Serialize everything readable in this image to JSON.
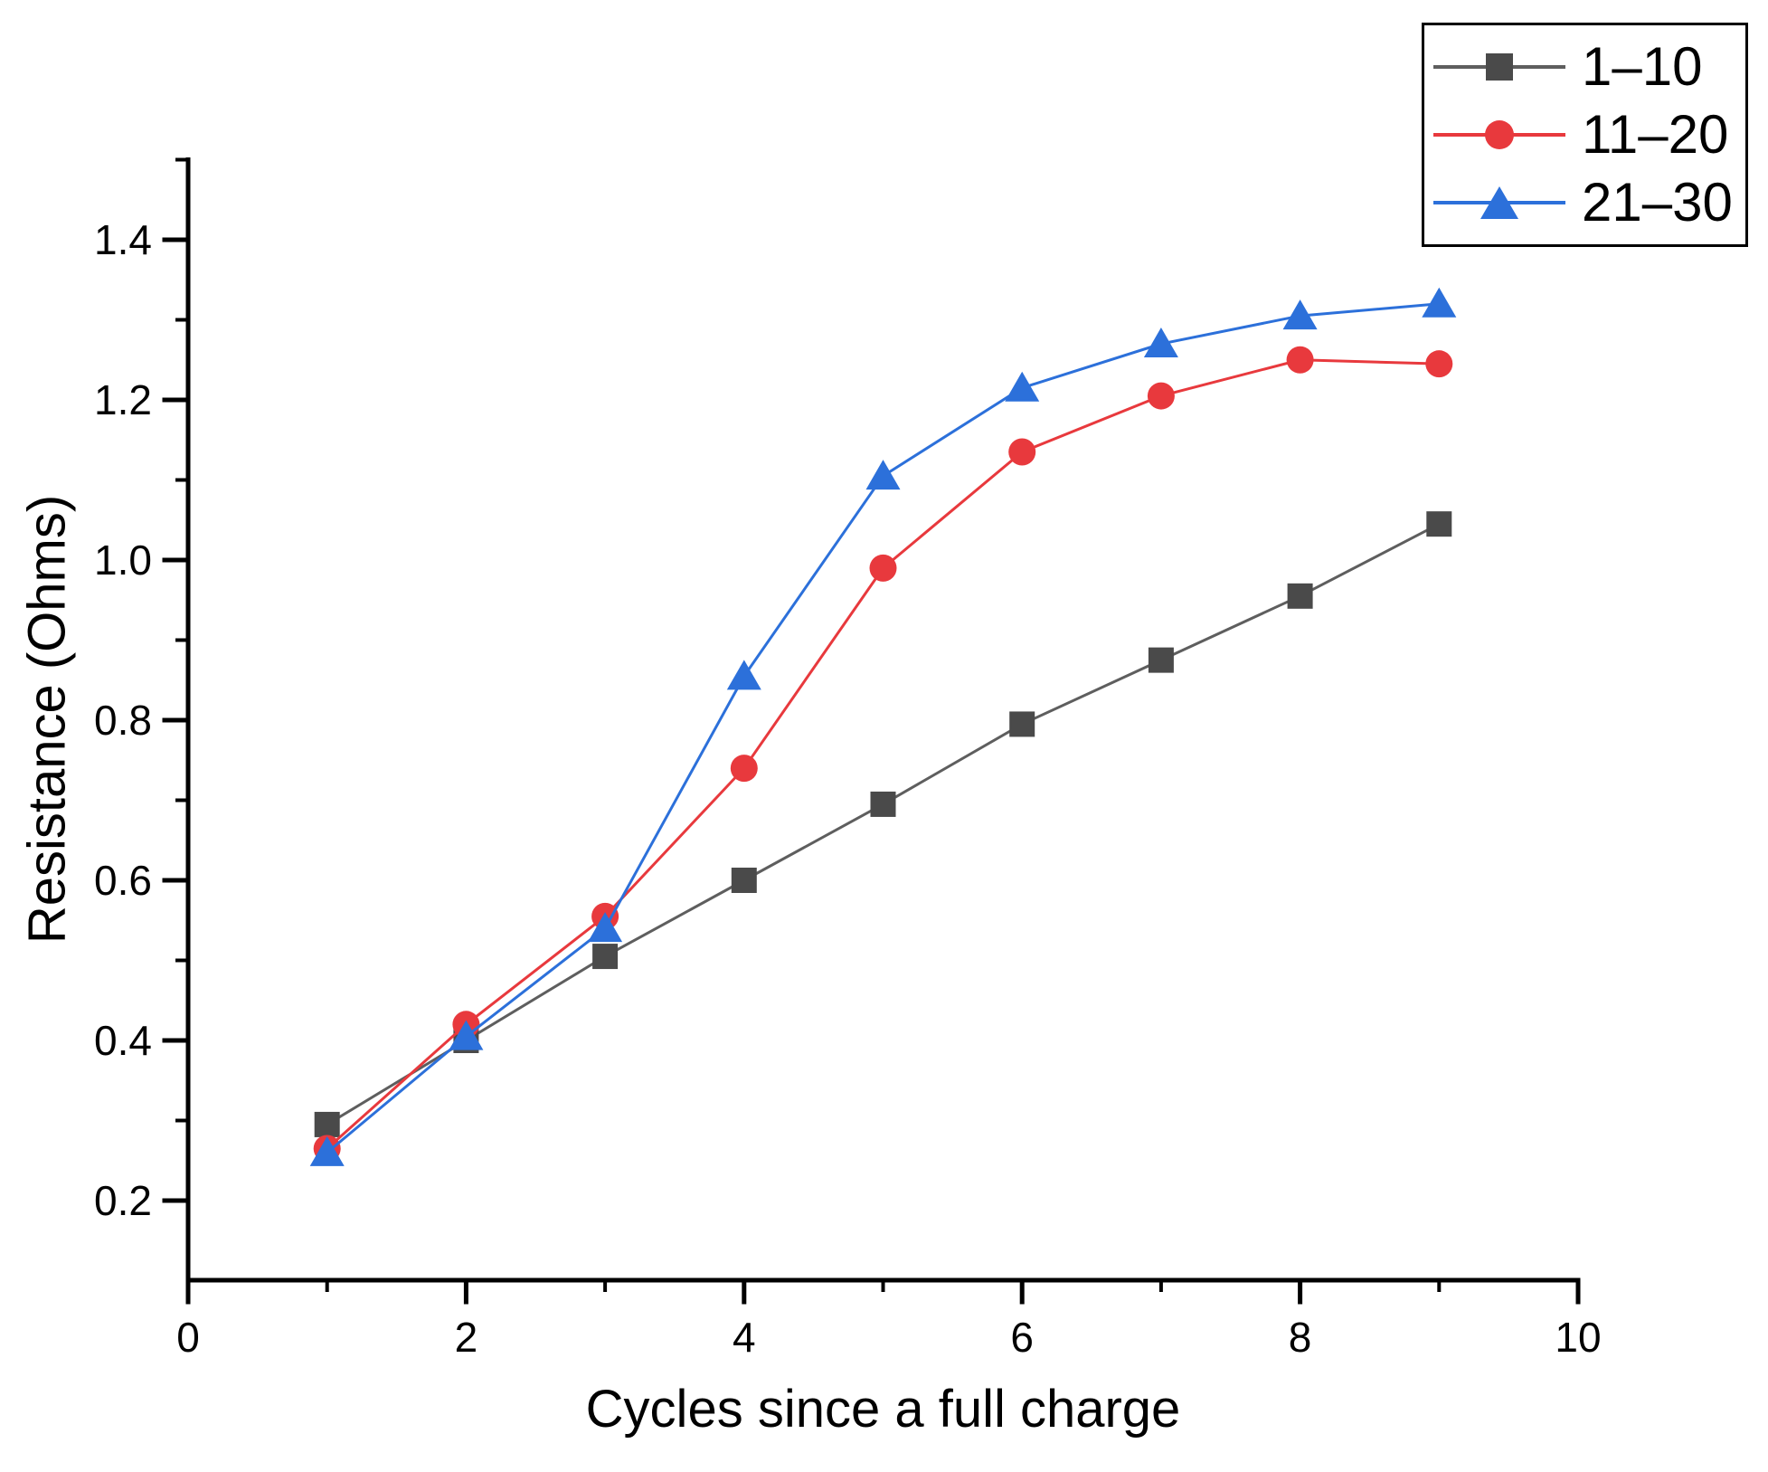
{
  "chart_data": {
    "type": "line",
    "title": "",
    "xlabel": "Cycles since a full charge",
    "ylabel": "Resistance (Ohms)",
    "x": [
      1,
      2,
      3,
      4,
      5,
      6,
      7,
      8,
      9
    ],
    "series": [
      {
        "name": "1–10",
        "marker": "square",
        "color": "#4A4A4A",
        "line_color": "#5E5E5E",
        "values": [
          0.295,
          0.4,
          0.505,
          0.6,
          0.695,
          0.795,
          0.875,
          0.955,
          1.045
        ]
      },
      {
        "name": "11–20",
        "marker": "circle",
        "color": "#E8393D",
        "line_color": "#E8393D",
        "values": [
          0.265,
          0.42,
          0.555,
          0.74,
          0.99,
          1.135,
          1.205,
          1.25,
          1.245
        ]
      },
      {
        "name": "21–30",
        "marker": "triangle",
        "color": "#2C70DA",
        "line_color": "#2C70DA",
        "values": [
          0.26,
          0.405,
          0.54,
          0.855,
          1.105,
          1.215,
          1.27,
          1.305,
          1.32
        ]
      }
    ],
    "xlim": [
      0,
      10
    ],
    "ylim": [
      0.1,
      1.5
    ],
    "x_major_ticks": [
      0,
      2,
      4,
      6,
      8,
      10
    ],
    "x_tick_labels": [
      "0",
      "2",
      "4",
      "6",
      "8",
      "10"
    ],
    "x_minor_ticks": [
      1,
      3,
      5,
      7,
      9
    ],
    "y_major_ticks": [
      0.2,
      0.4,
      0.6,
      0.8,
      1.0,
      1.2,
      1.4
    ],
    "y_tick_labels": [
      "0.2",
      "0.4",
      "0.6",
      "0.8",
      "1.0",
      "1.2",
      "1.4"
    ],
    "y_minor_ticks": [
      0.3,
      0.5,
      0.7,
      0.9,
      1.1,
      1.3,
      1.5
    ],
    "grid": false,
    "legend_position": "top-right",
    "axis_color": "#000000",
    "text_color": "#000000"
  }
}
